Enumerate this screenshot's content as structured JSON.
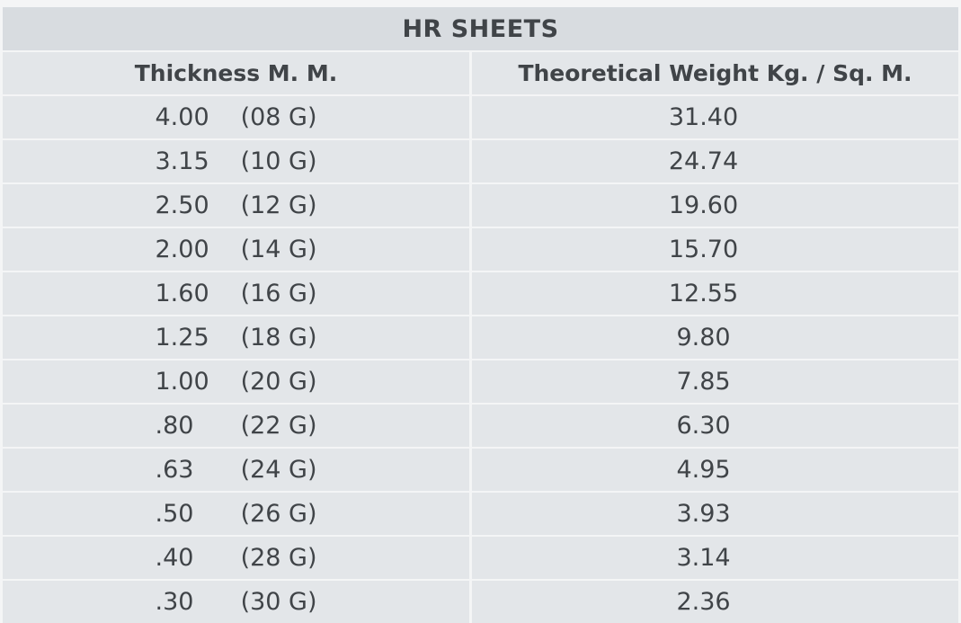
{
  "chart_data": {
    "type": "table",
    "title": "HR SHEETS",
    "columns": [
      "Thickness M. M.",
      "Theoretical Weight Kg. / Sq. M."
    ],
    "rows": [
      {
        "thickness": "4.00",
        "gauge": "(08 G)",
        "weight": "31.40"
      },
      {
        "thickness": "3.15",
        "gauge": "(10 G)",
        "weight": "24.74"
      },
      {
        "thickness": "2.50",
        "gauge": "(12 G)",
        "weight": "19.60"
      },
      {
        "thickness": "2.00",
        "gauge": "(14 G)",
        "weight": "15.70"
      },
      {
        "thickness": "1.60",
        "gauge": "(16 G)",
        "weight": "12.55"
      },
      {
        "thickness": "1.25",
        "gauge": "(18 G)",
        "weight": "9.80"
      },
      {
        "thickness": "1.00",
        "gauge": "(20 G)",
        "weight": "7.85"
      },
      {
        "thickness": ".80",
        "gauge": "(22 G)",
        "weight": "6.30"
      },
      {
        "thickness": ".63",
        "gauge": "(24 G)",
        "weight": "4.95"
      },
      {
        "thickness": ".50",
        "gauge": "(26 G)",
        "weight": "3.93"
      },
      {
        "thickness": ".40",
        "gauge": "(28 G)",
        "weight": "3.14"
      },
      {
        "thickness": ".30",
        "gauge": "(30 G)",
        "weight": "2.36"
      }
    ],
    "layout": {
      "title_row_spans_columns": true,
      "gridlines": "white row and column separators",
      "legend": "none"
    }
  },
  "colors": {
    "title_row_bg": "#d8dce0",
    "row_bg": "#e3e6e9",
    "separator": "#f4f5f6",
    "text": "#404448"
  }
}
